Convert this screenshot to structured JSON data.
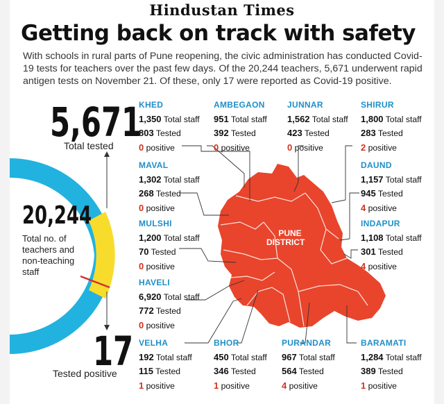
{
  "masthead": "Hindustan Times",
  "headline": "Getting back on track with safety",
  "intro": "With schools in rural parts of Pune reopening, the civic administration has conducted Covid-19 tests for teachers over the past few days. Of the 20,244 teachers, 5,671 underwent rapid antigen tests on November 21. Of these, only 17 were reported as Covid-19 positive.",
  "summary": {
    "tested_value": "5,671",
    "tested_label": "Total tested",
    "total_value": "20,244",
    "total_label_1": "Total no. of",
    "total_label_2": "teachers and",
    "total_label_3": "non-teaching",
    "total_label_4": "staff",
    "positive_value": "17",
    "positive_label": "Tested positive"
  },
  "map": {
    "label_1": "PUNE",
    "label_2": "DISTRICT"
  },
  "labels": {
    "staff": "Total staff",
    "tested": "Tested",
    "positive": "positive"
  },
  "colors": {
    "ring": "#22b2df",
    "tested_segment": "#f8dc2c",
    "positive_line": "#d32f2f",
    "map": "#e8452c",
    "district_name": "#1f8fc9",
    "positive_text": "#d2321d"
  },
  "districts": [
    {
      "name": "KHED",
      "staff": "1,350",
      "tested": "803",
      "positive": "0"
    },
    {
      "name": "AMBEGAON",
      "staff": "951",
      "tested": "392",
      "positive": "0"
    },
    {
      "name": "JUNNAR",
      "staff": "1,562",
      "tested": "423",
      "positive": "0"
    },
    {
      "name": "SHIRUR",
      "staff": "1,800",
      "tested": "283",
      "positive": "2"
    },
    {
      "name": "MAVAL",
      "staff": "1,302",
      "tested": "268",
      "positive": "0"
    },
    {
      "name": "DAUND",
      "staff": "1,157",
      "tested": "945",
      "positive": "4"
    },
    {
      "name": "MULSHI",
      "staff": "1,200",
      "tested": "70",
      "positive": "0"
    },
    {
      "name": "INDAPUR",
      "staff": "1,108",
      "tested": "301",
      "positive": "4"
    },
    {
      "name": "HAVELI",
      "staff": "6,920",
      "tested": "772",
      "positive": "0"
    },
    {
      "name": "VELHA",
      "staff": "192",
      "tested": "115",
      "positive": "1"
    },
    {
      "name": "BHOR",
      "staff": "450",
      "tested": "346",
      "positive": "1"
    },
    {
      "name": "PURANDAR",
      "staff": "967",
      "tested": "564",
      "positive": "4"
    },
    {
      "name": "BARAMATI",
      "staff": "1,284",
      "tested": "389",
      "positive": "1"
    }
  ]
}
